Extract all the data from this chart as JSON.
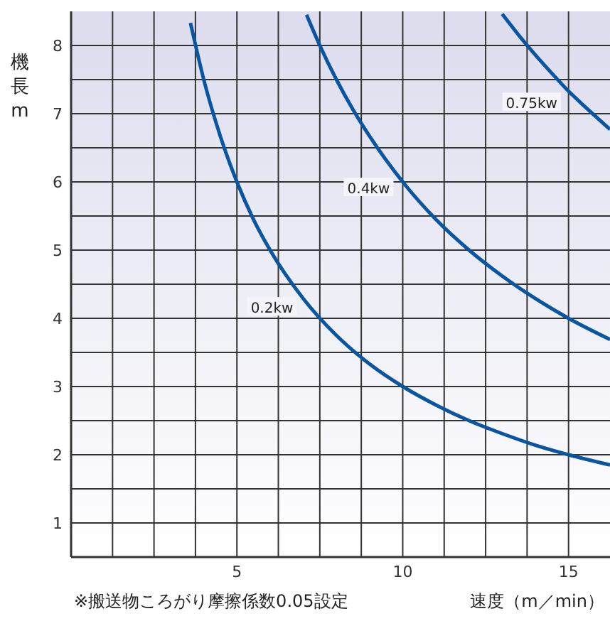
{
  "chart_data": {
    "type": "line",
    "xlabel": "速度（m／min）",
    "ylabel": "機長m",
    "xlim": [
      0,
      16.25
    ],
    "ylim": [
      0.5,
      8.5
    ],
    "xticks": [
      {
        "value": 1.25,
        "label": null
      },
      {
        "value": 2.5,
        "label": null
      },
      {
        "value": 3.75,
        "label": null
      },
      5,
      {
        "value": 6.25,
        "label": null
      },
      {
        "value": 7.5,
        "label": null
      },
      {
        "value": 8.75,
        "label": null
      },
      10,
      {
        "value": 11.25,
        "label": null
      },
      {
        "value": 12.5,
        "label": null
      },
      {
        "value": 13.75,
        "label": null
      },
      15
    ],
    "yticks": [
      1,
      {
        "value": 1.5,
        "label": null
      },
      2,
      {
        "value": 2.5,
        "label": null
      },
      3,
      {
        "value": 3.5,
        "label": null
      },
      4,
      {
        "value": 4.5,
        "label": null
      },
      5,
      {
        "value": 5.5,
        "label": null
      },
      6,
      {
        "value": 6.5,
        "label": null
      },
      7,
      {
        "value": 7.5,
        "label": null
      },
      8
    ],
    "grid": true,
    "marker": "none",
    "line_style": "solid",
    "series": [
      {
        "name": "0.2kw",
        "color": "#0a55a0",
        "x": [
          3.6,
          4,
          4.5,
          5,
          5.5,
          6,
          7,
          8,
          9,
          10,
          11,
          12,
          13,
          14,
          15,
          16.25
        ],
        "values": [
          8.33,
          7.5,
          6.67,
          6,
          5.45,
          5,
          4.29,
          3.75,
          3.33,
          3,
          2.73,
          2.5,
          2.31,
          2.14,
          2,
          1.85
        ]
      },
      {
        "name": "0.4kw",
        "color": "#0a55a0",
        "x": [
          7.1,
          7.5,
          8,
          8.5,
          9,
          10,
          11,
          12,
          13,
          14,
          15,
          16.25
        ],
        "values": [
          8.45,
          8,
          7.5,
          7.06,
          6.67,
          6,
          5.45,
          5,
          4.62,
          4.29,
          4,
          3.69
        ]
      },
      {
        "name": "0.75kw",
        "color": "#0a55a0",
        "x": [
          13,
          13.5,
          14,
          14.5,
          15,
          15.5,
          16.25
        ],
        "values": [
          8.46,
          8.15,
          7.86,
          7.59,
          7.33,
          7.1,
          6.77
        ]
      }
    ],
    "annotations": [
      "※搬送物ころがり摩擦係数0.05設定"
    ]
  }
}
